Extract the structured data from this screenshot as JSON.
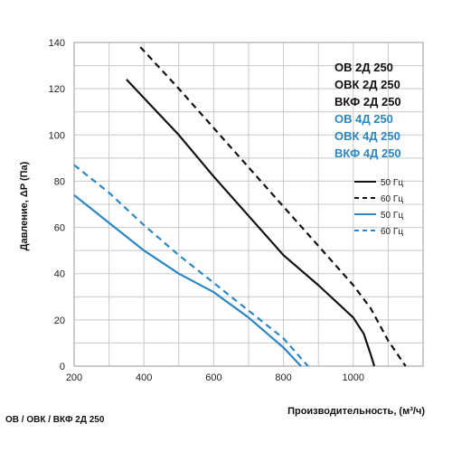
{
  "chart_data": {
    "type": "line",
    "xlabel": "Производительность, (м³/ч)",
    "ylabel": "Давление, ΔP (Па)",
    "xlim": [
      200,
      1200
    ],
    "ylim": [
      0,
      140
    ],
    "x_ticks": [
      200,
      400,
      600,
      800,
      1000
    ],
    "y_ticks": [
      0,
      20,
      40,
      60,
      80,
      100,
      120,
      140
    ],
    "grid": true,
    "models_black": [
      "ОВ 2Д 250",
      "ОВК 2Д 250",
      "ВКФ 2Д 250"
    ],
    "models_blue": [
      "ОВ 4Д 250",
      "ОВК 4Д 250",
      "ВКФ 4Д 250"
    ],
    "legend": [
      {
        "label": "50 Гц",
        "color": "#111111",
        "dashed": false
      },
      {
        "label": "60 Гц",
        "color": "#111111",
        "dashed": true
      },
      {
        "label": "50 Гц",
        "color": "#2a86c4",
        "dashed": false
      },
      {
        "label": "60 Гц",
        "color": "#2a86c4",
        "dashed": true
      }
    ],
    "series": [
      {
        "color": "#111111",
        "dashed": false,
        "x": [
          350,
          400,
          500,
          600,
          700,
          800,
          900,
          1000,
          1030,
          1050,
          1060
        ],
        "y": [
          124,
          116,
          100,
          82,
          65,
          48,
          35,
          21,
          14,
          5,
          0
        ]
      },
      {
        "color": "#111111",
        "dashed": true,
        "x": [
          390,
          500,
          600,
          700,
          800,
          900,
          1000,
          1050,
          1100,
          1150
        ],
        "y": [
          138,
          120,
          103,
          86,
          69,
          52,
          35,
          25,
          11,
          0
        ]
      },
      {
        "color": "#2a86c4",
        "dashed": false,
        "x": [
          200,
          300,
          400,
          500,
          600,
          700,
          800,
          850
        ],
        "y": [
          74,
          62,
          50,
          40,
          32,
          21,
          8,
          0
        ]
      },
      {
        "color": "#2a86c4",
        "dashed": true,
        "x": [
          200,
          300,
          400,
          500,
          600,
          700,
          800,
          870
        ],
        "y": [
          87,
          75,
          61,
          48,
          36,
          24,
          12,
          0
        ]
      }
    ]
  },
  "footer_caption": "ОВ / ОВК / ВКФ 2Д 250",
  "colors": {
    "black": "#111111",
    "blue": "#2a86c4",
    "grid": "#c8c8c8"
  }
}
